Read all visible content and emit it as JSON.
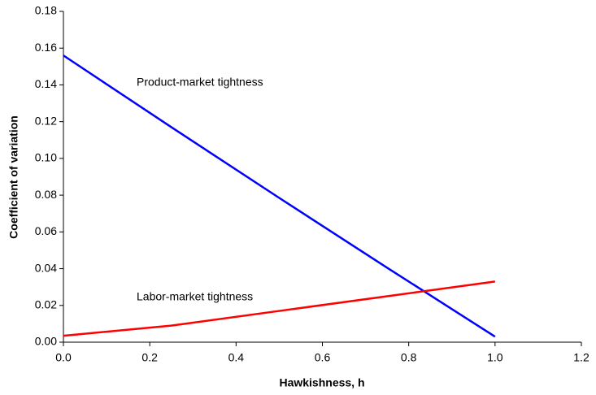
{
  "chart_data": {
    "type": "line",
    "x_label": "Hawkishness, h",
    "y_label": "Coefficient of variation",
    "x": [
      0,
      0.25,
      0.5,
      0.75,
      1.0
    ],
    "series": [
      {
        "name": "Product-market tightness",
        "color": "#0000ff",
        "values": [
          0.156,
          0.117,
          0.0785,
          0.0405,
          0.003
        ]
      },
      {
        "name": "Labor-market tightness",
        "color": "#ff0000",
        "values": [
          0.0035,
          0.009,
          0.017,
          0.025,
          0.033
        ]
      }
    ],
    "xlim": [
      0,
      1.2
    ],
    "xticks": [
      {
        "value": 0,
        "label": "0.0"
      },
      0.2,
      0.4,
      0.6,
      0.8,
      {
        "value": 1,
        "label": "1.0"
      },
      1.2
    ],
    "ylim": [
      0,
      0.18
    ],
    "yticks": [
      {
        "value": 0,
        "label": "0.00"
      },
      {
        "value": 0.02,
        "label": "0.02"
      },
      {
        "value": 0.04,
        "label": "0.04"
      },
      {
        "value": 0.06,
        "label": "0.06"
      },
      {
        "value": 0.08,
        "label": "0.08"
      },
      {
        "value": 0.1,
        "label": "0.10"
      },
      {
        "value": 0.12,
        "label": "0.12"
      },
      {
        "value": 0.14,
        "label": "0.14"
      },
      {
        "value": 0.16,
        "label": "0.16"
      },
      {
        "value": 0.18,
        "label": "0.18"
      }
    ]
  }
}
